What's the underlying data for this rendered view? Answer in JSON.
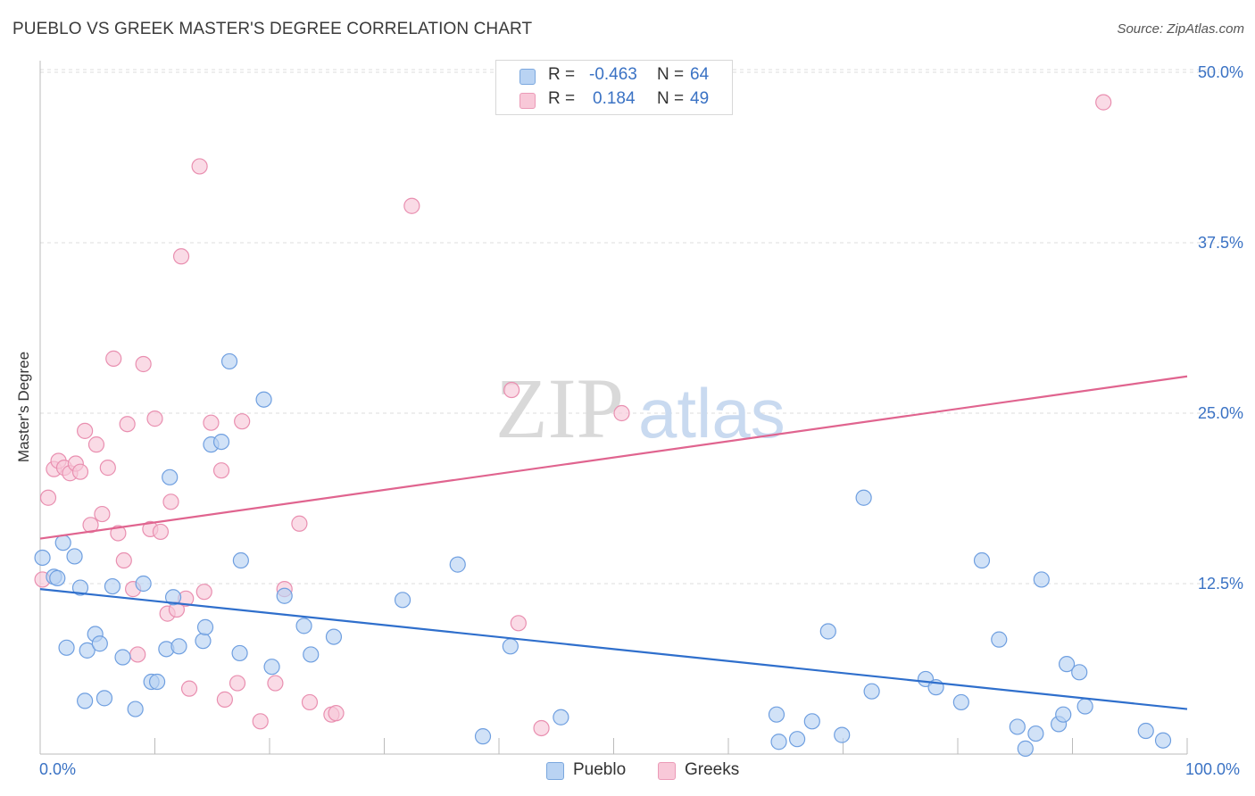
{
  "header": {
    "title": "PUEBLO VS GREEK MASTER'S DEGREE CORRELATION CHART",
    "source": "Source: ZipAtlas.com"
  },
  "watermark": {
    "zip": "ZIP",
    "atlas": "atlas"
  },
  "legend": {
    "rows": [
      {
        "r_label": "R =",
        "r_value": "-0.463",
        "n_label": "N =",
        "n_value": "64"
      },
      {
        "r_label": "R =",
        "r_value": "0.184",
        "n_label": "N =",
        "n_value": "49"
      }
    ]
  },
  "bottom_legend": {
    "pueblo": "Pueblo",
    "greeks": "Greeks"
  },
  "colors": {
    "pueblo_fill": "#b9d3f3",
    "pueblo_stroke": "#6f9fe0",
    "pueblo_line": "#2f6fcc",
    "greeks_fill": "#f8c8d8",
    "greeks_stroke": "#e98fb0",
    "greeks_line": "#e0648f",
    "tick_label": "#3a72c4",
    "grid": "#dddddd"
  },
  "chart_data": {
    "type": "scatter",
    "title": "PUEBLO VS GREEK MASTER'S DEGREE CORRELATION CHART",
    "xlabel": "",
    "ylabel": "Master's Degree",
    "xlim": [
      0,
      100
    ],
    "ylim": [
      0,
      52
    ],
    "x_tick_labels": [
      "0.0%",
      "100.0%"
    ],
    "y_ticks": [
      12.5,
      25.0,
      37.5,
      50.0
    ],
    "y_tick_labels": [
      "12.5%",
      "25.0%",
      "37.5%",
      "50.0%"
    ],
    "grid": "horizontal dashed",
    "legend_position": "top-center",
    "series": [
      {
        "name": "Pueblo",
        "r": -0.463,
        "n": 64,
        "trend": {
          "x": [
            0,
            100
          ],
          "y": [
            12.1,
            3.3
          ]
        },
        "points": [
          [
            0.2,
            14.4
          ],
          [
            1.2,
            13.0
          ],
          [
            1.5,
            12.9
          ],
          [
            2.0,
            15.5
          ],
          [
            3.0,
            14.5
          ],
          [
            3.5,
            12.2
          ],
          [
            2.3,
            7.8
          ],
          [
            4.1,
            7.6
          ],
          [
            4.8,
            8.8
          ],
          [
            5.2,
            8.1
          ],
          [
            3.9,
            3.9
          ],
          [
            5.6,
            4.1
          ],
          [
            6.3,
            12.3
          ],
          [
            7.2,
            7.1
          ],
          [
            8.3,
            3.3
          ],
          [
            9.0,
            12.5
          ],
          [
            9.7,
            5.3
          ],
          [
            10.2,
            5.3
          ],
          [
            11.0,
            7.7
          ],
          [
            11.6,
            11.5
          ],
          [
            11.3,
            20.3
          ],
          [
            12.1,
            7.9
          ],
          [
            14.2,
            8.3
          ],
          [
            14.4,
            9.3
          ],
          [
            14.9,
            22.7
          ],
          [
            15.8,
            22.9
          ],
          [
            16.5,
            28.8
          ],
          [
            17.4,
            7.4
          ],
          [
            17.5,
            14.2
          ],
          [
            19.5,
            26.0
          ],
          [
            20.2,
            6.4
          ],
          [
            21.3,
            11.6
          ],
          [
            23.0,
            9.4
          ],
          [
            23.6,
            7.3
          ],
          [
            25.6,
            8.6
          ],
          [
            31.6,
            11.3
          ],
          [
            36.4,
            13.9
          ],
          [
            38.6,
            1.3
          ],
          [
            41.0,
            7.9
          ],
          [
            45.4,
            2.7
          ],
          [
            64.2,
            2.9
          ],
          [
            64.4,
            0.9
          ],
          [
            66.0,
            1.1
          ],
          [
            67.3,
            2.4
          ],
          [
            68.7,
            9.0
          ],
          [
            69.9,
            1.4
          ],
          [
            71.8,
            18.8
          ],
          [
            72.5,
            4.6
          ],
          [
            77.2,
            5.5
          ],
          [
            78.1,
            4.9
          ],
          [
            80.3,
            3.8
          ],
          [
            82.1,
            14.2
          ],
          [
            83.6,
            8.4
          ],
          [
            85.2,
            2.0
          ],
          [
            85.9,
            0.4
          ],
          [
            86.8,
            1.5
          ],
          [
            87.3,
            12.8
          ],
          [
            88.8,
            2.2
          ],
          [
            89.2,
            2.9
          ],
          [
            89.5,
            6.6
          ],
          [
            90.6,
            6.0
          ],
          [
            91.1,
            3.5
          ],
          [
            96.4,
            1.7
          ],
          [
            97.9,
            1.0
          ]
        ]
      },
      {
        "name": "Greeks",
        "r": 0.184,
        "n": 49,
        "trend": {
          "x": [
            0,
            100
          ],
          "y": [
            15.8,
            27.7
          ]
        },
        "points": [
          [
            0.2,
            12.8
          ],
          [
            0.7,
            18.8
          ],
          [
            1.2,
            20.9
          ],
          [
            1.6,
            21.5
          ],
          [
            2.1,
            21.0
          ],
          [
            2.6,
            20.6
          ],
          [
            3.1,
            21.3
          ],
          [
            3.5,
            20.7
          ],
          [
            3.9,
            23.7
          ],
          [
            4.4,
            16.8
          ],
          [
            4.9,
            22.7
          ],
          [
            5.4,
            17.6
          ],
          [
            5.9,
            21.0
          ],
          [
            6.4,
            29.0
          ],
          [
            6.8,
            16.2
          ],
          [
            7.3,
            14.2
          ],
          [
            7.6,
            24.2
          ],
          [
            8.1,
            12.1
          ],
          [
            8.5,
            7.3
          ],
          [
            9.0,
            28.6
          ],
          [
            9.6,
            16.5
          ],
          [
            10.0,
            24.6
          ],
          [
            10.5,
            16.3
          ],
          [
            11.1,
            10.3
          ],
          [
            11.4,
            18.5
          ],
          [
            11.9,
            10.6
          ],
          [
            12.3,
            36.5
          ],
          [
            12.7,
            11.4
          ],
          [
            13.0,
            4.8
          ],
          [
            13.9,
            43.1
          ],
          [
            14.3,
            11.9
          ],
          [
            14.9,
            24.3
          ],
          [
            15.8,
            20.8
          ],
          [
            16.1,
            4.0
          ],
          [
            17.2,
            5.2
          ],
          [
            17.6,
            24.4
          ],
          [
            19.2,
            2.4
          ],
          [
            20.5,
            5.2
          ],
          [
            21.3,
            12.1
          ],
          [
            22.6,
            16.9
          ],
          [
            23.5,
            3.8
          ],
          [
            25.4,
            2.9
          ],
          [
            25.8,
            3.0
          ],
          [
            32.4,
            40.2
          ],
          [
            41.1,
            26.7
          ],
          [
            41.7,
            9.6
          ],
          [
            43.7,
            1.9
          ],
          [
            50.7,
            25.0
          ],
          [
            92.7,
            47.8
          ]
        ]
      }
    ]
  }
}
